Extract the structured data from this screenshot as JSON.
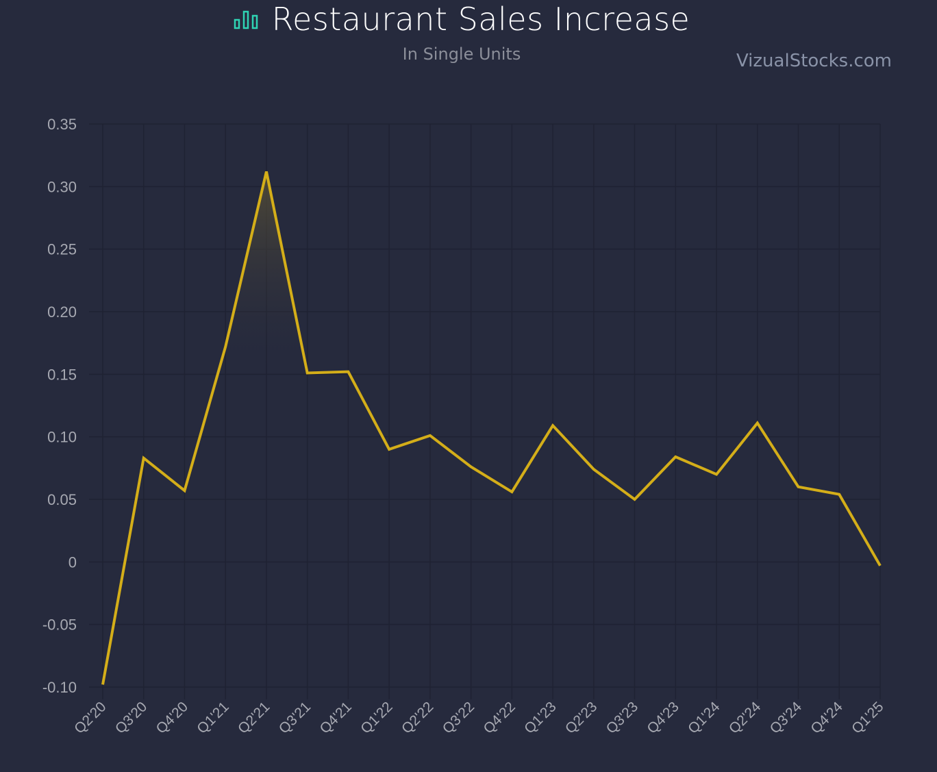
{
  "header": {
    "title": "Restaurant Sales Increase",
    "subtitle": "In Single Units",
    "brand": "VizualStocks.com",
    "icon": "bar-chart-icon"
  },
  "colors": {
    "background": "#262a3d",
    "line": "#d4ae19",
    "icon": "#2fd4b4",
    "grid": "#1f2233"
  },
  "chart_data": {
    "type": "line",
    "title": "Restaurant Sales Increase",
    "subtitle": "In Single Units",
    "xlabel": "",
    "ylabel": "",
    "categories": [
      "Q2'20",
      "Q3'20",
      "Q4'20",
      "Q1'21",
      "Q2'21",
      "Q3'21",
      "Q4'21",
      "Q1'22",
      "Q2'22",
      "Q3'22",
      "Q4'22",
      "Q1'23",
      "Q2'23",
      "Q3'23",
      "Q4'23",
      "Q1'24",
      "Q2'24",
      "Q3'24",
      "Q4'24",
      "Q1'25"
    ],
    "series": [
      {
        "values": [
          -0.098,
          0.083,
          0.057,
          0.172,
          0.312,
          0.151,
          0.152,
          0.09,
          0.101,
          0.076,
          0.056,
          0.109,
          0.074,
          0.05,
          0.084,
          0.07,
          0.111,
          0.06,
          0.054,
          -0.003
        ]
      }
    ],
    "ylim": [
      -0.1,
      0.35
    ],
    "yticks": [
      "0.35",
      "0.30",
      "0.25",
      "0.20",
      "0.15",
      "0.10",
      "0.05",
      "0",
      "-0.05",
      "-0.10"
    ],
    "ytick_values": [
      0.35,
      0.3,
      0.25,
      0.2,
      0.15,
      0.1,
      0.05,
      0,
      -0.05,
      -0.1
    ],
    "grid": true,
    "legend": "none"
  }
}
